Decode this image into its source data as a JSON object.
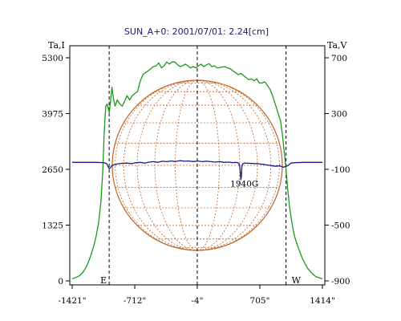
{
  "chart_data": {
    "type": "line",
    "title": "SUN_A+0: 2001/07/01: 2.24[cm]",
    "y_left_label": "Ta,I",
    "y_right_label": "Ta,V",
    "xlim": [
      -1421,
      1414
    ],
    "ylim_left": [
      0,
      5300
    ],
    "ylim_right": [
      -900,
      700
    ],
    "x_ticks": [
      {
        "value": -1421,
        "label": "-1421\""
      },
      {
        "value": -712,
        "label": "-712\""
      },
      {
        "value": -4,
        "label": "-4\""
      },
      {
        "value": 705,
        "label": "705\""
      },
      {
        "value": 1414,
        "label": "1414\""
      }
    ],
    "y_left_ticks": [
      {
        "value": 0,
        "label": "0"
      },
      {
        "value": 1325,
        "label": "1325"
      },
      {
        "value": 2650,
        "label": "2650"
      },
      {
        "value": 3975,
        "label": "3975"
      },
      {
        "value": 5300,
        "label": "5300"
      }
    ],
    "y_right_ticks": [
      {
        "value": -900,
        "label": "-900"
      },
      {
        "value": -500,
        "label": "-500"
      },
      {
        "value": -100,
        "label": "-100"
      },
      {
        "value": 300,
        "label": "300"
      },
      {
        "value": 700,
        "label": "700"
      }
    ],
    "limb_markers": [
      {
        "x": -1002,
        "label": "E"
      },
      {
        "x": -4,
        "label": ""
      },
      {
        "x": 1002,
        "label": "W"
      }
    ],
    "annotations": [
      {
        "x": 530,
        "y_right": -200,
        "text": "1940G"
      }
    ],
    "series": [
      {
        "axis": "left",
        "color": "#1a9a1a",
        "points": [
          [
            -1421,
            50
          ],
          [
            -1380,
            80
          ],
          [
            -1340,
            120
          ],
          [
            -1300,
            200
          ],
          [
            -1270,
            300
          ],
          [
            -1240,
            430
          ],
          [
            -1210,
            600
          ],
          [
            -1180,
            800
          ],
          [
            -1150,
            1050
          ],
          [
            -1120,
            1400
          ],
          [
            -1095,
            1900
          ],
          [
            -1075,
            2600
          ],
          [
            -1060,
            3400
          ],
          [
            -1048,
            3900
          ],
          [
            -1040,
            4150
          ],
          [
            -1025,
            4200
          ],
          [
            -1000,
            4000
          ],
          [
            -985,
            4300
          ],
          [
            -970,
            4600
          ],
          [
            -955,
            4350
          ],
          [
            -935,
            4150
          ],
          [
            -910,
            4300
          ],
          [
            -880,
            4200
          ],
          [
            -855,
            4150
          ],
          [
            -830,
            4250
          ],
          [
            -800,
            4400
          ],
          [
            -770,
            4300
          ],
          [
            -740,
            4400
          ],
          [
            -712,
            4450
          ],
          [
            -680,
            4500
          ],
          [
            -650,
            4750
          ],
          [
            -620,
            4900
          ],
          [
            -590,
            4950
          ],
          [
            -560,
            4990
          ],
          [
            -530,
            5040
          ],
          [
            -500,
            5090
          ],
          [
            -470,
            5110
          ],
          [
            -440,
            5180
          ],
          [
            -410,
            5060
          ],
          [
            -380,
            5110
          ],
          [
            -350,
            5200
          ],
          [
            -320,
            5150
          ],
          [
            -290,
            5200
          ],
          [
            -260,
            5200
          ],
          [
            -230,
            5140
          ],
          [
            -200,
            5090
          ],
          [
            -170,
            5110
          ],
          [
            -140,
            5150
          ],
          [
            -110,
            5110
          ],
          [
            -80,
            5060
          ],
          [
            -50,
            5090
          ],
          [
            -20,
            5060
          ],
          [
            10,
            5110
          ],
          [
            40,
            5150
          ],
          [
            70,
            5090
          ],
          [
            100,
            5130
          ],
          [
            130,
            5160
          ],
          [
            160,
            5090
          ],
          [
            190,
            5110
          ],
          [
            220,
            5060
          ],
          [
            250,
            5070
          ],
          [
            280,
            5080
          ],
          [
            310,
            5090
          ],
          [
            340,
            5060
          ],
          [
            370,
            5040
          ],
          [
            400,
            4990
          ],
          [
            430,
            4950
          ],
          [
            460,
            4900
          ],
          [
            490,
            4930
          ],
          [
            520,
            4880
          ],
          [
            550,
            4830
          ],
          [
            580,
            4780
          ],
          [
            610,
            4800
          ],
          [
            640,
            4750
          ],
          [
            670,
            4800
          ],
          [
            700,
            4700
          ],
          [
            730,
            4700
          ],
          [
            760,
            4730
          ],
          [
            790,
            4650
          ],
          [
            820,
            4550
          ],
          [
            850,
            4400
          ],
          [
            880,
            4200
          ],
          [
            910,
            4000
          ],
          [
            940,
            3800
          ],
          [
            960,
            3500
          ],
          [
            980,
            3100
          ],
          [
            1000,
            2700
          ],
          [
            1020,
            2200
          ],
          [
            1040,
            1800
          ],
          [
            1060,
            1500
          ],
          [
            1080,
            1250
          ],
          [
            1100,
            1050
          ],
          [
            1130,
            850
          ],
          [
            1160,
            680
          ],
          [
            1190,
            520
          ],
          [
            1220,
            400
          ],
          [
            1250,
            290
          ],
          [
            1280,
            210
          ],
          [
            1310,
            150
          ],
          [
            1340,
            100
          ],
          [
            1380,
            70
          ],
          [
            1414,
            50
          ]
        ]
      },
      {
        "axis": "right",
        "color": "#1a1a8a",
        "points": [
          [
            -1421,
            -50
          ],
          [
            -1300,
            -50
          ],
          [
            -1150,
            -50
          ],
          [
            -1060,
            -52
          ],
          [
            -1030,
            -60
          ],
          [
            -1015,
            -80
          ],
          [
            -1000,
            -95
          ],
          [
            -990,
            -90
          ],
          [
            -975,
            -75
          ],
          [
            -950,
            -68
          ],
          [
            -900,
            -60
          ],
          [
            -850,
            -57
          ],
          [
            -800,
            -55
          ],
          [
            -750,
            -60
          ],
          [
            -700,
            -53
          ],
          [
            -650,
            -50
          ],
          [
            -600,
            -55
          ],
          [
            -550,
            -48
          ],
          [
            -500,
            -45
          ],
          [
            -450,
            -50
          ],
          [
            -400,
            -42
          ],
          [
            -350,
            -45
          ],
          [
            -300,
            -40
          ],
          [
            -250,
            -44
          ],
          [
            -200,
            -38
          ],
          [
            -150,
            -42
          ],
          [
            -100,
            -40
          ],
          [
            -50,
            -44
          ],
          [
            0,
            -40
          ],
          [
            50,
            -45
          ],
          [
            100,
            -42
          ],
          [
            150,
            -45
          ],
          [
            200,
            -48
          ],
          [
            250,
            -45
          ],
          [
            300,
            -50
          ],
          [
            350,
            -48
          ],
          [
            400,
            -52
          ],
          [
            430,
            -50
          ],
          [
            455,
            -52
          ],
          [
            470,
            -60
          ],
          [
            480,
            -90
          ],
          [
            490,
            -175
          ],
          [
            496,
            -150
          ],
          [
            502,
            -80
          ],
          [
            512,
            -60
          ],
          [
            530,
            -55
          ],
          [
            570,
            -56
          ],
          [
            620,
            -58
          ],
          [
            680,
            -60
          ],
          [
            750,
            -65
          ],
          [
            820,
            -72
          ],
          [
            880,
            -78
          ],
          [
            930,
            -75
          ],
          [
            970,
            -85
          ],
          [
            1000,
            -80
          ],
          [
            1030,
            -70
          ],
          [
            1060,
            -55
          ],
          [
            1100,
            -52
          ],
          [
            1200,
            -50
          ],
          [
            1300,
            -50
          ],
          [
            1414,
            -50
          ]
        ]
      }
    ]
  }
}
